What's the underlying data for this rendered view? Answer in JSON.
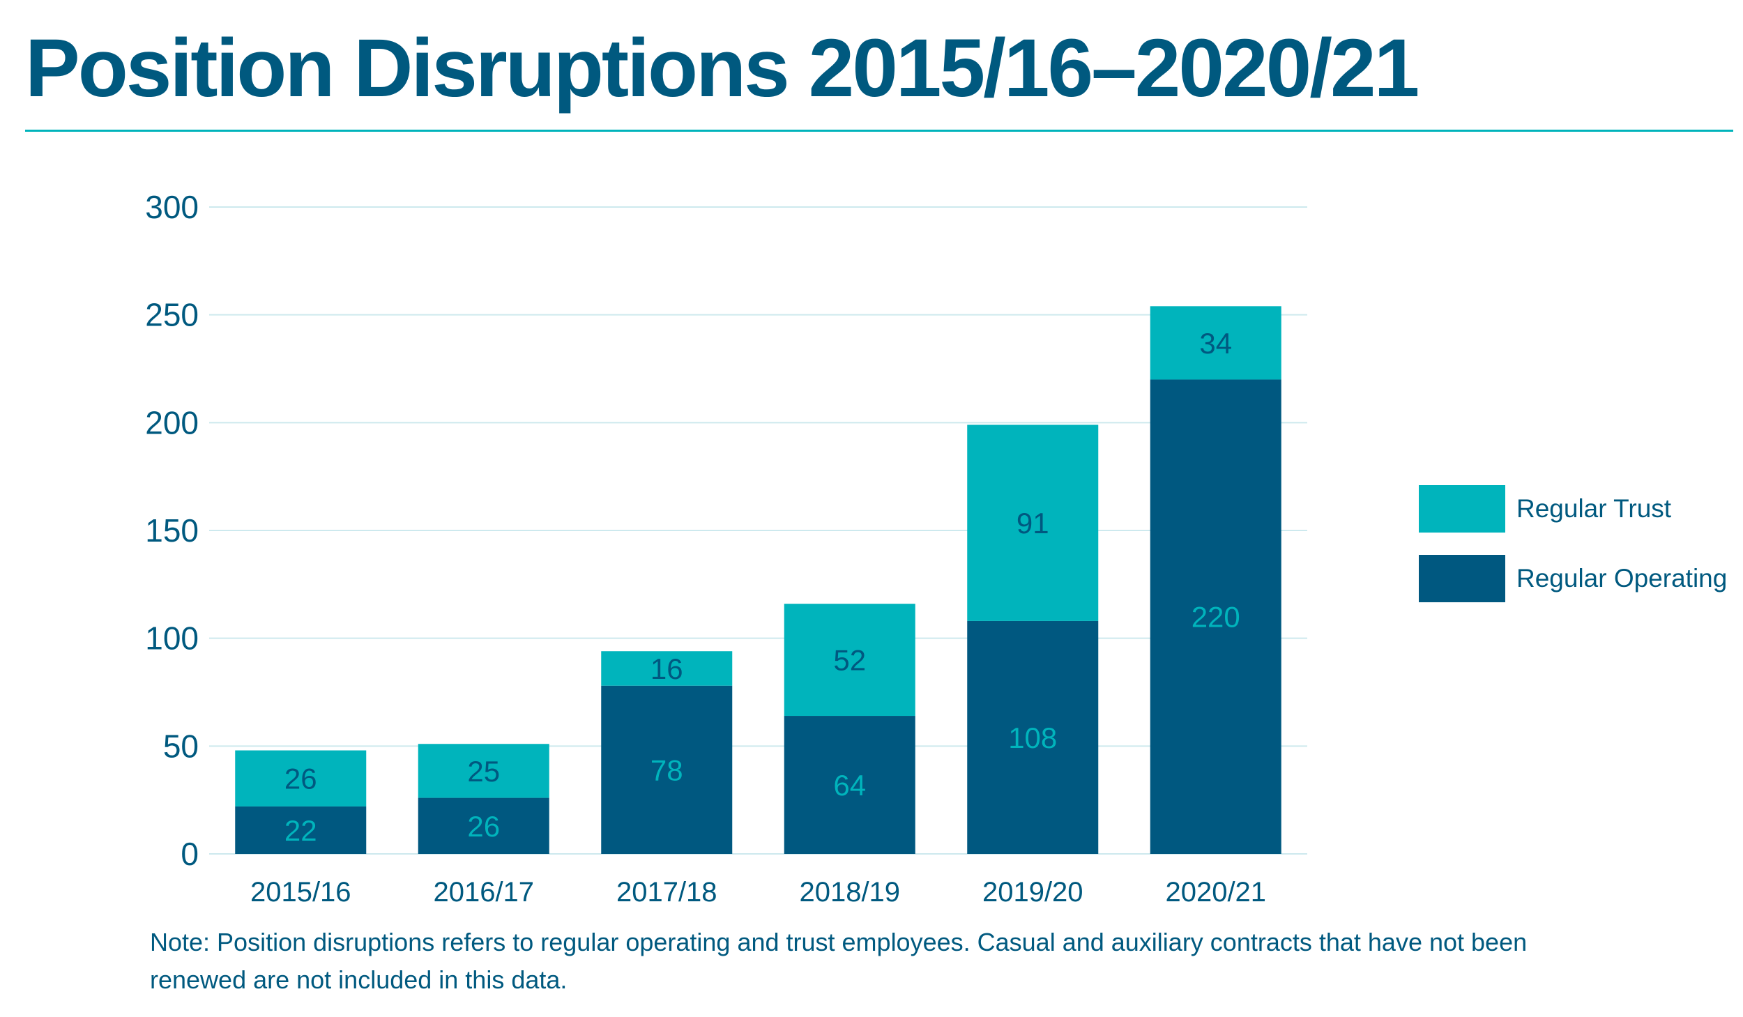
{
  "title": "Position Disruptions 2015/16–2020/21",
  "note": "Note: Position disruptions refers to regular operating and trust employees. Casual and auxiliary contracts that have not been renewed are not included in this data.",
  "colors": {
    "title": "#00597f",
    "regular_operating": "#005880",
    "regular_trust": "#00b4bc",
    "gridline": "#cde9ee",
    "axis_text": "#00597f"
  },
  "chart_data": {
    "type": "bar",
    "stacked": true,
    "categories": [
      "2015/16",
      "2016/17",
      "2017/18",
      "2018/19",
      "2019/20",
      "2020/21"
    ],
    "series": [
      {
        "name": "Regular Operating",
        "values": [
          22,
          26,
          78,
          64,
          108,
          220
        ]
      },
      {
        "name": "Regular Trust",
        "values": [
          26,
          25,
          16,
          52,
          91,
          34
        ]
      }
    ],
    "ylim": [
      0,
      300
    ],
    "yticks": [
      0,
      50,
      100,
      150,
      200,
      250,
      300
    ],
    "grid": true,
    "legend_position": "right",
    "data_labels": true
  }
}
